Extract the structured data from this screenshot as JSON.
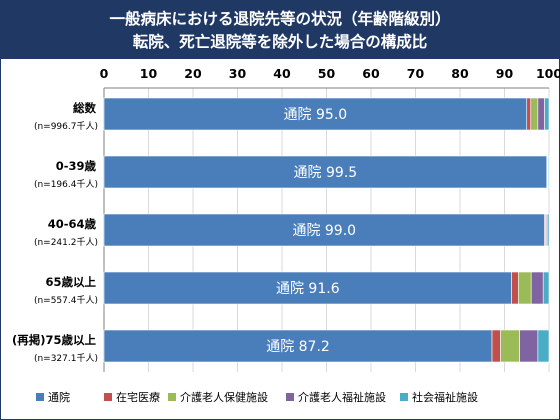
{
  "header": {
    "title_line1": "一般病床における退院先等の状況（年齢階級別）",
    "title_line2": "転院、死亡退院等を除外した場合の構成比"
  },
  "colors": {
    "header_bg": "#1f3864",
    "series": [
      "#4a7ebb",
      "#c0504d",
      "#9bbb59",
      "#8064a2",
      "#4bacc6"
    ]
  },
  "chart_data": {
    "type": "bar",
    "orientation": "horizontal",
    "stacked": true,
    "xlim": [
      0,
      100
    ],
    "x_ticks": [
      "0",
      "10",
      "20",
      "30",
      "40",
      "50",
      "60",
      "70",
      "80",
      "90",
      "100"
    ],
    "grid": true,
    "legend_position": "bottom",
    "categories": [
      {
        "label": "総数",
        "sublabel": "(n=996.7千人)"
      },
      {
        "label": "0-39歳",
        "sublabel": "(n=196.4千人)"
      },
      {
        "label": "40-64歳",
        "sublabel": "(n=241.2千人)"
      },
      {
        "label": "65歳以上",
        "sublabel": "(n=557.4千人)"
      },
      {
        "label": "(再掲)75歳以上",
        "sublabel": "(n=327.1千人)"
      }
    ],
    "series": [
      {
        "name": "通院",
        "values": [
          95.0,
          99.5,
          99.0,
          91.6,
          87.2
        ]
      },
      {
        "name": "在宅医療",
        "values": [
          0.9,
          0.1,
          0.2,
          1.5,
          1.9
        ]
      },
      {
        "name": "介護老人保健施設",
        "values": [
          1.6,
          0.1,
          0.2,
          2.9,
          4.3
        ]
      },
      {
        "name": "介護老人福祉施設",
        "values": [
          1.5,
          0.1,
          0.2,
          2.7,
          4.1
        ]
      },
      {
        "name": "社会福祉施設",
        "values": [
          1.0,
          0.2,
          0.4,
          1.3,
          2.5
        ]
      }
    ],
    "data_labels": [
      {
        "series": "通院",
        "prefix": "通院",
        "values": [
          "95.0",
          "99.5",
          "99.0",
          "91.6",
          "87.2"
        ]
      }
    ]
  }
}
